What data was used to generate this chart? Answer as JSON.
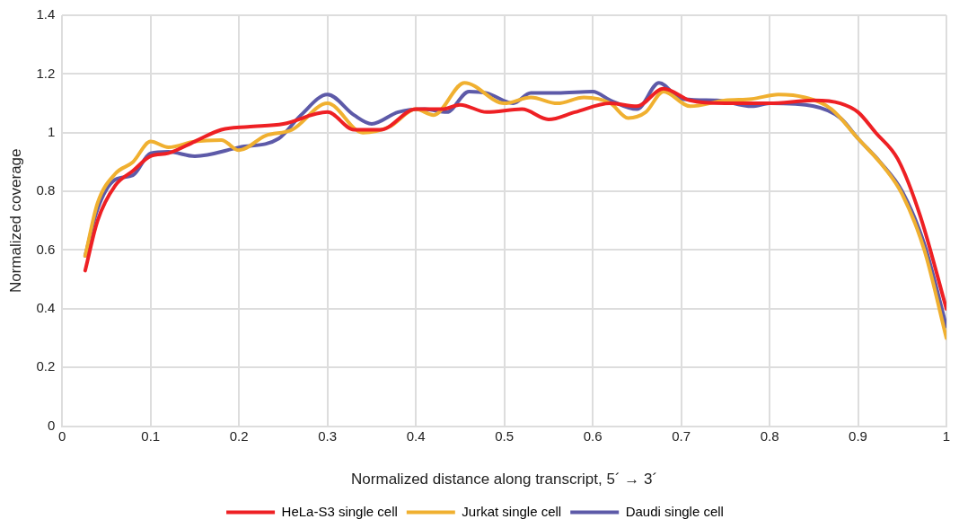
{
  "chart_data": {
    "type": "line",
    "xlabel": "Normalized distance along transcript, 5´ → 3´",
    "ylabel": "Normalized coverage",
    "xlim": [
      0,
      1
    ],
    "xticks": [
      0,
      0.1,
      0.2,
      0.3,
      0.4,
      0.5,
      0.6,
      0.7,
      0.8,
      0.9,
      1
    ],
    "ylim": [
      0,
      1.4
    ],
    "yticks": [
      0,
      0.2,
      0.4,
      0.6,
      0.8,
      1.0,
      1.2,
      1.4
    ],
    "grid": true,
    "legend": "bottom",
    "marker": "none",
    "line_style": "solid",
    "series": [
      {
        "name": "HeLa-S3 single cell",
        "color": "#ee2024",
        "x": [
          0.026,
          0.04,
          0.06,
          0.08,
          0.1,
          0.12,
          0.15,
          0.18,
          0.21,
          0.25,
          0.3,
          0.33,
          0.36,
          0.4,
          0.43,
          0.45,
          0.48,
          0.52,
          0.55,
          0.58,
          0.62,
          0.65,
          0.68,
          0.71,
          0.75,
          0.8,
          0.85,
          0.88,
          0.9,
          0.92,
          0.945,
          0.97,
          1.0
        ],
        "values": [
          0.53,
          0.7,
          0.82,
          0.87,
          0.92,
          0.93,
          0.97,
          1.01,
          1.02,
          1.03,
          1.07,
          1.01,
          1.01,
          1.08,
          1.08,
          1.095,
          1.07,
          1.08,
          1.045,
          1.07,
          1.1,
          1.09,
          1.15,
          1.11,
          1.1,
          1.1,
          1.11,
          1.1,
          1.07,
          1.0,
          0.91,
          0.72,
          0.4
        ]
      },
      {
        "name": "Jurkat single cell",
        "color": "#f0b030",
        "x": [
          0.026,
          0.04,
          0.06,
          0.08,
          0.1,
          0.12,
          0.15,
          0.18,
          0.2,
          0.23,
          0.26,
          0.3,
          0.34,
          0.37,
          0.4,
          0.42,
          0.455,
          0.5,
          0.53,
          0.56,
          0.59,
          0.62,
          0.64,
          0.66,
          0.68,
          0.71,
          0.75,
          0.78,
          0.81,
          0.84,
          0.87,
          0.9,
          0.93,
          0.95,
          0.975,
          1.0
        ],
        "values": [
          0.58,
          0.76,
          0.86,
          0.9,
          0.97,
          0.95,
          0.97,
          0.975,
          0.94,
          0.99,
          1.01,
          1.1,
          1.0,
          1.02,
          1.08,
          1.06,
          1.17,
          1.1,
          1.12,
          1.1,
          1.12,
          1.1,
          1.05,
          1.07,
          1.14,
          1.09,
          1.11,
          1.115,
          1.13,
          1.12,
          1.08,
          0.98,
          0.88,
          0.79,
          0.6,
          0.3
        ]
      },
      {
        "name": "Daudi single cell",
        "color": "#5d5aa8",
        "x": [
          0.026,
          0.04,
          0.06,
          0.08,
          0.1,
          0.12,
          0.15,
          0.2,
          0.245,
          0.27,
          0.3,
          0.33,
          0.35,
          0.38,
          0.41,
          0.435,
          0.46,
          0.48,
          0.51,
          0.53,
          0.56,
          0.6,
          0.62,
          0.65,
          0.675,
          0.7,
          0.74,
          0.78,
          0.8,
          0.85,
          0.88,
          0.9,
          0.925,
          0.95,
          0.975,
          1.0
        ],
        "values": [
          0.58,
          0.74,
          0.84,
          0.855,
          0.93,
          0.935,
          0.92,
          0.95,
          0.98,
          1.06,
          1.13,
          1.06,
          1.03,
          1.07,
          1.08,
          1.07,
          1.14,
          1.135,
          1.1,
          1.135,
          1.135,
          1.14,
          1.11,
          1.08,
          1.17,
          1.115,
          1.11,
          1.09,
          1.1,
          1.09,
          1.05,
          0.98,
          0.9,
          0.8,
          0.62,
          0.34
        ]
      }
    ]
  }
}
